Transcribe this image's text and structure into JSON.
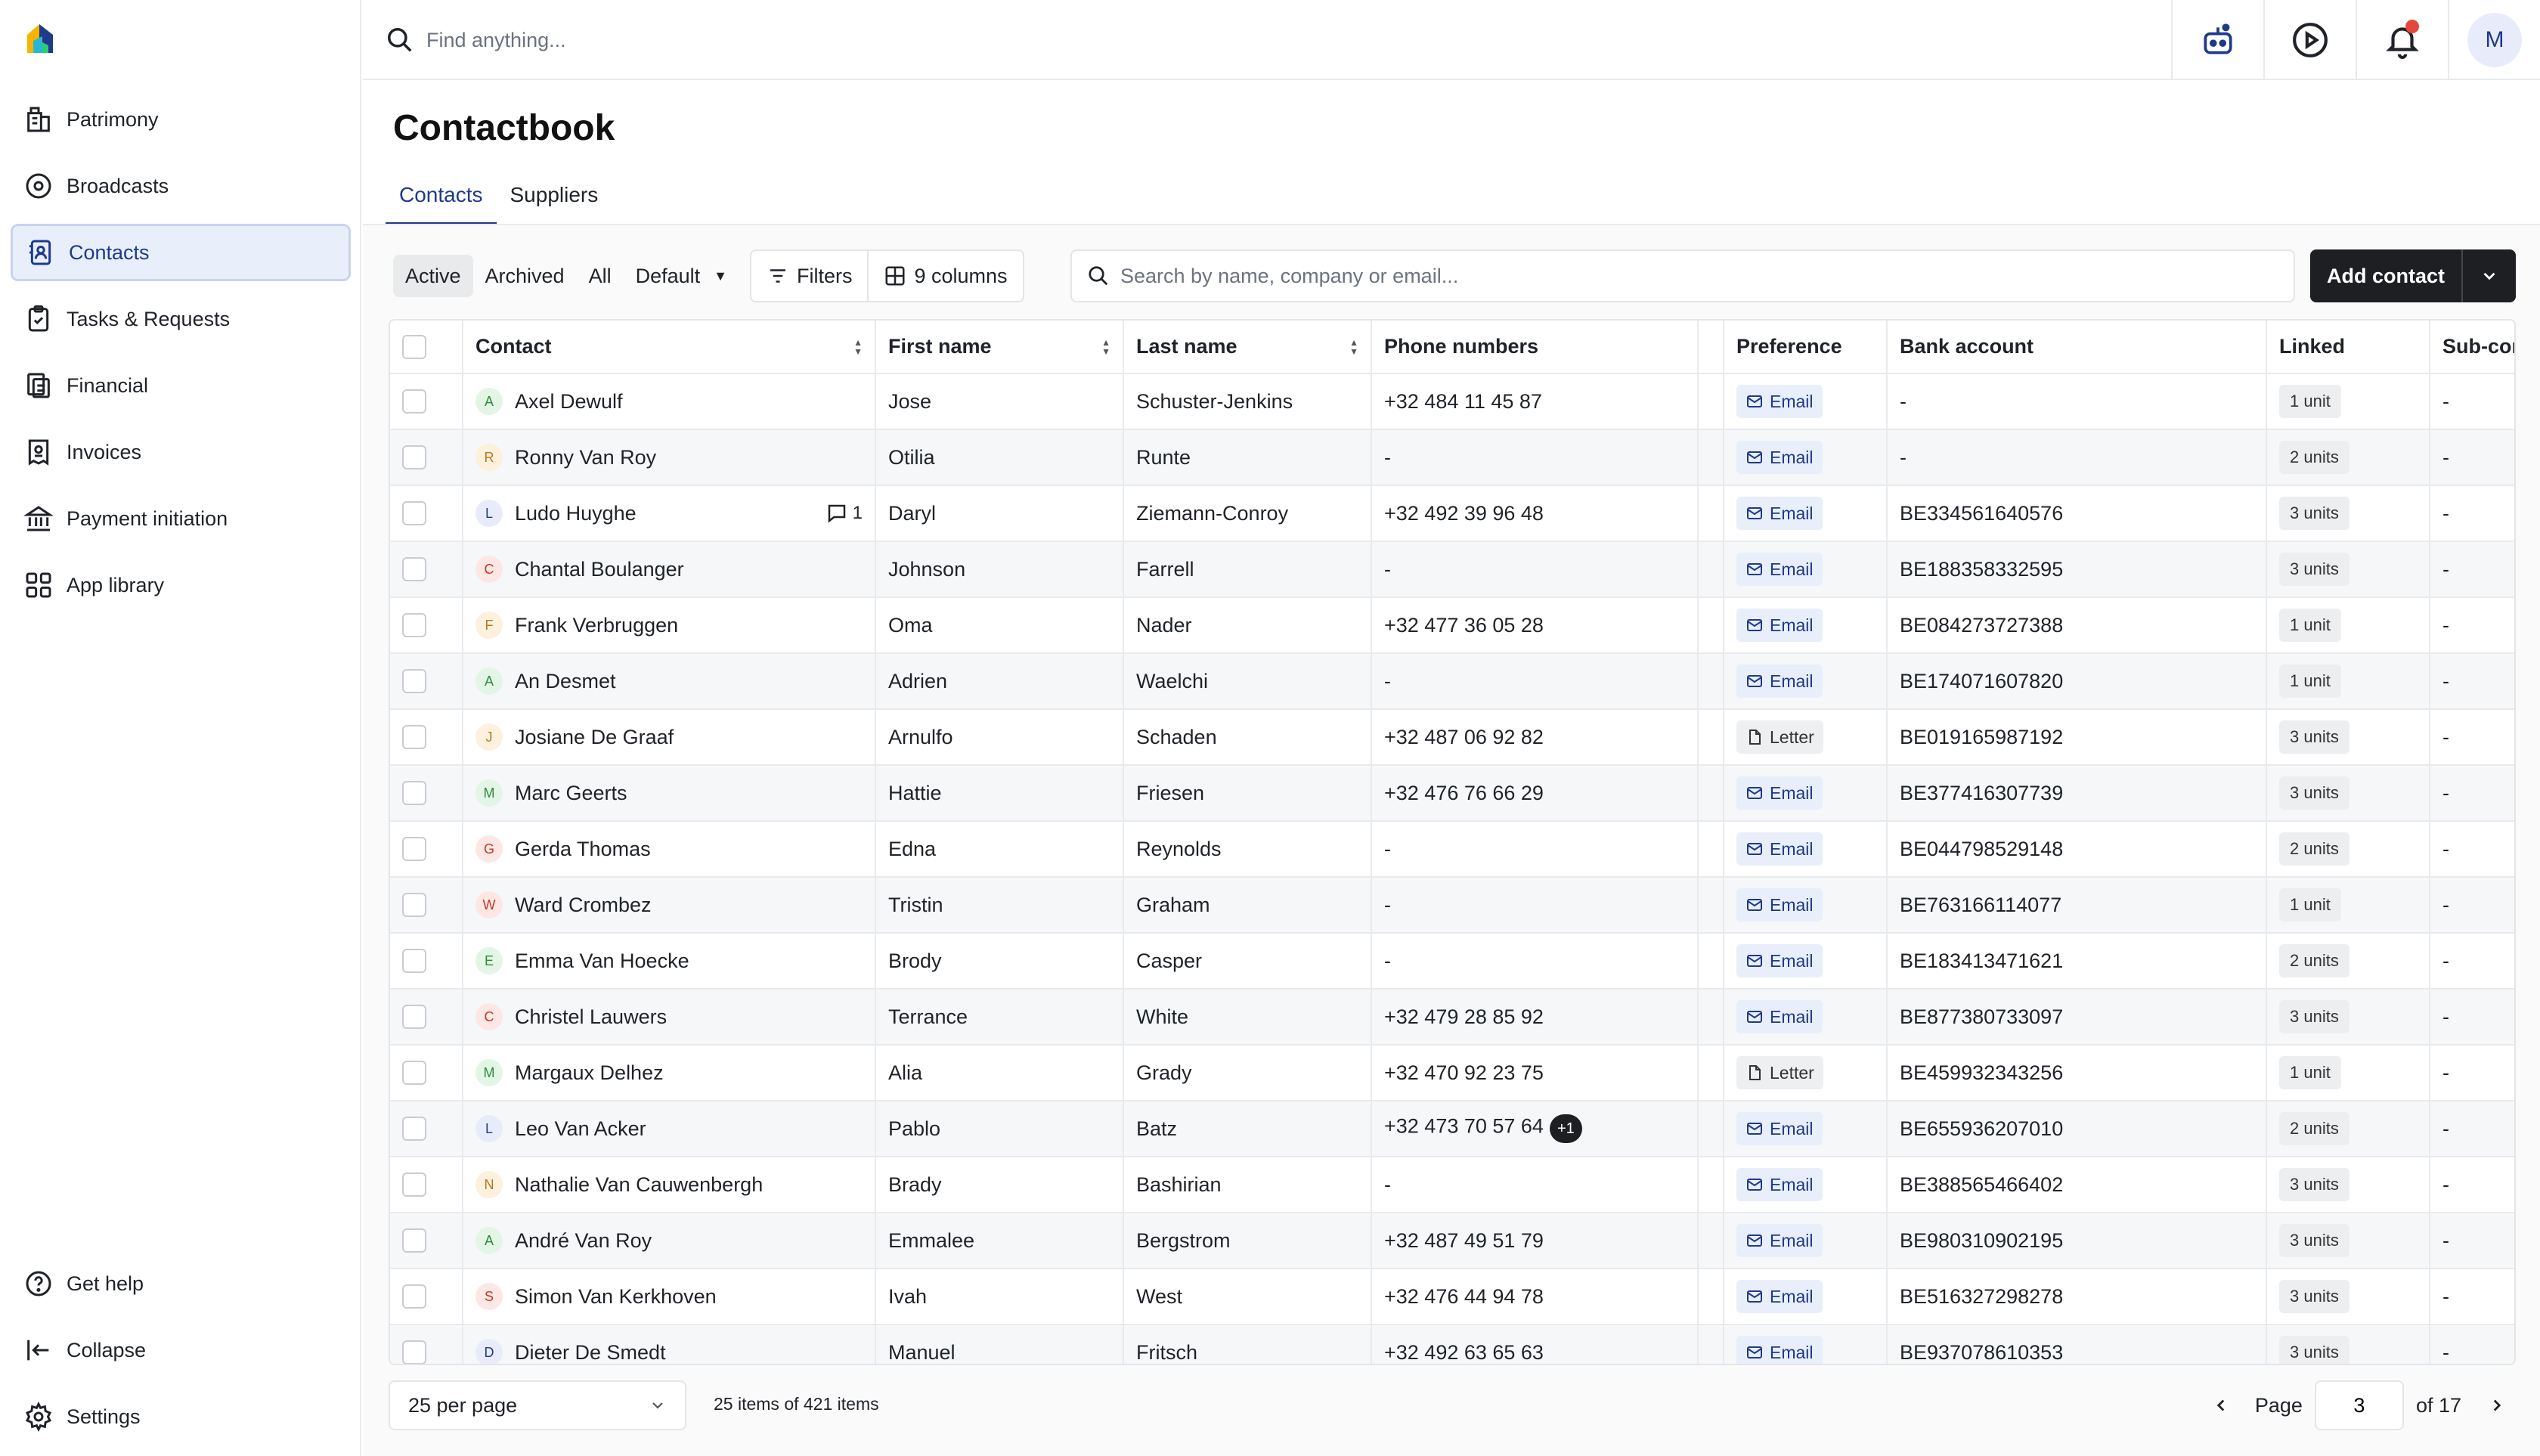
{
  "sidebar": {
    "items": [
      {
        "label": "Patrimony",
        "icon": "building-icon"
      },
      {
        "label": "Broadcasts",
        "icon": "broadcast-icon"
      },
      {
        "label": "Contacts",
        "icon": "contacts-icon",
        "active": true
      },
      {
        "label": "Tasks & Requests",
        "icon": "clipboard-icon"
      },
      {
        "label": "Financial",
        "icon": "financial-icon"
      },
      {
        "label": "Invoices",
        "icon": "invoice-icon"
      },
      {
        "label": "Payment initiation",
        "icon": "bank-icon"
      },
      {
        "label": "App library",
        "icon": "grid-icon"
      }
    ],
    "bottom": [
      {
        "label": "Get help",
        "icon": "help-icon"
      },
      {
        "label": "Collapse",
        "icon": "collapse-icon"
      },
      {
        "label": "Settings",
        "icon": "gear-icon"
      }
    ]
  },
  "topbar": {
    "search_placeholder": "Find anything...",
    "avatar_initial": "M"
  },
  "page": {
    "title": "Contactbook",
    "tabs": [
      "Contacts",
      "Suppliers"
    ]
  },
  "toolbar": {
    "filters": [
      "Active",
      "Archived",
      "All"
    ],
    "view": "Default",
    "filters_label": "Filters",
    "columns_label": "9 columns",
    "search_placeholder": "Search by name, company or email...",
    "add_label": "Add contact"
  },
  "table": {
    "headers": [
      "Contact",
      "First name",
      "Last name",
      "Phone numbers",
      "",
      "Preference",
      "Bank account",
      "Linked",
      "Sub-con"
    ],
    "rows": [
      {
        "initial": "A",
        "contact": "Axel Dewulf",
        "first": "Jose",
        "last": "Schuster-Jenkins",
        "phone": "+32 484 11 45 87",
        "pref": "Email",
        "bank": "-",
        "linked": "1 unit",
        "sub": "-"
      },
      {
        "initial": "R",
        "contact": "Ronny Van Roy",
        "first": "Otilia",
        "last": "Runte",
        "phone": "-",
        "pref": "Email",
        "bank": "-",
        "linked": "2 units",
        "sub": "-"
      },
      {
        "initial": "L",
        "contact": "Ludo Huyghe",
        "comments": "1",
        "first": "Daryl",
        "last": "Ziemann-Conroy",
        "phone": "+32 492 39 96 48",
        "pref": "Email",
        "bank": "BE334561640576",
        "linked": "3 units",
        "sub": "-"
      },
      {
        "initial": "C",
        "contact": "Chantal Boulanger",
        "first": "Johnson",
        "last": "Farrell",
        "phone": "-",
        "pref": "Email",
        "bank": "BE188358332595",
        "linked": "3 units",
        "sub": "-"
      },
      {
        "initial": "F",
        "contact": "Frank Verbruggen",
        "first": "Oma",
        "last": "Nader",
        "phone": "+32 477 36 05 28",
        "pref": "Email",
        "bank": "BE084273727388",
        "linked": "1 unit",
        "sub": "-"
      },
      {
        "initial": "A",
        "contact": "An Desmet",
        "first": "Adrien",
        "last": "Waelchi",
        "phone": "-",
        "pref": "Email",
        "bank": "BE174071607820",
        "linked": "1 unit",
        "sub": "-"
      },
      {
        "initial": "J",
        "contact": "Josiane De Graaf",
        "first": "Arnulfo",
        "last": "Schaden",
        "phone": "+32 487 06 92 82",
        "pref": "Letter",
        "bank": "BE019165987192",
        "linked": "3 units",
        "sub": "-"
      },
      {
        "initial": "M",
        "contact": "Marc Geerts",
        "first": "Hattie",
        "last": "Friesen",
        "phone": "+32 476 76 66 29",
        "pref": "Email",
        "bank": "BE377416307739",
        "linked": "3 units",
        "sub": "-"
      },
      {
        "initial": "G",
        "contact": "Gerda Thomas",
        "first": "Edna",
        "last": "Reynolds",
        "phone": "-",
        "pref": "Email",
        "bank": "BE044798529148",
        "linked": "2 units",
        "sub": "-"
      },
      {
        "initial": "W",
        "contact": "Ward Crombez",
        "first": "Tristin",
        "last": "Graham",
        "phone": "-",
        "pref": "Email",
        "bank": "BE763166114077",
        "linked": "1 unit",
        "sub": "-"
      },
      {
        "initial": "E",
        "contact": "Emma Van Hoecke",
        "first": "Brody",
        "last": "Casper",
        "phone": "-",
        "pref": "Email",
        "bank": "BE183413471621",
        "linked": "2 units",
        "sub": "-"
      },
      {
        "initial": "C",
        "contact": "Christel Lauwers",
        "first": "Terrance",
        "last": "White",
        "phone": "+32 479 28 85 92",
        "pref": "Email",
        "bank": "BE877380733097",
        "linked": "3 units",
        "sub": "-"
      },
      {
        "initial": "M",
        "contact": "Margaux Delhez",
        "first": "Alia",
        "last": "Grady",
        "phone": "+32 470 92 23 75",
        "pref": "Letter",
        "bank": "BE459932343256",
        "linked": "1 unit",
        "sub": "-"
      },
      {
        "initial": "L",
        "contact": "Leo Van Acker",
        "first": "Pablo",
        "last": "Batz",
        "phone": "+32 473 70 57 64",
        "phone_extra": "+1",
        "pref": "Email",
        "bank": "BE655936207010",
        "linked": "2 units",
        "sub": "-"
      },
      {
        "initial": "N",
        "contact": "Nathalie Van Cauwenbergh",
        "first": "Brady",
        "last": "Bashirian",
        "phone": "-",
        "pref": "Email",
        "bank": "BE388565466402",
        "linked": "3 units",
        "sub": "-"
      },
      {
        "initial": "A",
        "contact": "André Van Roy",
        "first": "Emmalee",
        "last": "Bergstrom",
        "phone": "+32 487 49 51 79",
        "pref": "Email",
        "bank": "BE980310902195",
        "linked": "3 units",
        "sub": "-"
      },
      {
        "initial": "S",
        "contact": "Simon Van Kerkhoven",
        "first": "Ivah",
        "last": "West",
        "phone": "+32 476 44 94 78",
        "pref": "Email",
        "bank": "BE516327298278",
        "linked": "3 units",
        "sub": "-"
      },
      {
        "initial": "D",
        "contact": "Dieter De Smedt",
        "first": "Manuel",
        "last": "Fritsch",
        "phone": "+32 492 63 65 63",
        "pref": "Email",
        "bank": "BE937078610353",
        "linked": "3 units",
        "sub": "-"
      }
    ]
  },
  "footer": {
    "per_page": "25 per page",
    "items_count": "25 items of 421 items",
    "page_label": "Page",
    "page_value": "3",
    "of_label": "of 17"
  },
  "colors": {
    "accent": "#1e3a8a",
    "active_bg": "#e9eefb",
    "primary_button": "#1d1f23",
    "notification": "#e5483b"
  }
}
